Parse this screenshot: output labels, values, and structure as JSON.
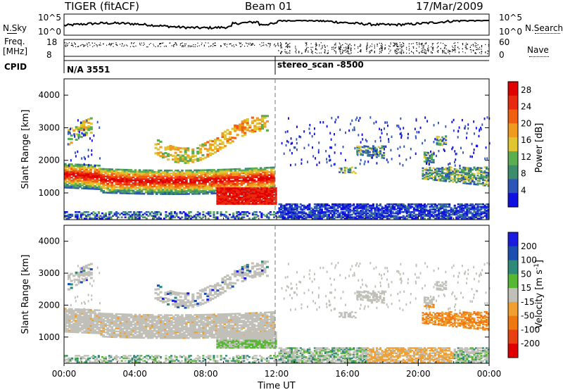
{
  "header": {
    "radar": "TIGER (fitACF)",
    "beam": "Beam 01",
    "date": "17/Mar/2009"
  },
  "top_strip": {
    "left_label": "N.Sky",
    "right_label": "N.Search",
    "y_ticks_left": [
      "10^5",
      "10^0"
    ],
    "y_ticks_right": [
      "10^5",
      "10^0"
    ]
  },
  "freq_strip": {
    "left_label_1": "Freq.",
    "left_label_2": "[MHz]",
    "right_label": "Nave",
    "y_ticks_left": [
      "18",
      "8"
    ],
    "y_ticks_right": [
      "60",
      "0"
    ]
  },
  "cpid": {
    "label": "CPID",
    "segments": [
      {
        "text": "N/A 3551",
        "start_hour": 0
      },
      {
        "text": "stereo_scan -8500",
        "start_hour": 12
      }
    ]
  },
  "colors": {
    "power": [
      "#1010e0",
      "#2e55b8",
      "#3c8c6e",
      "#5aae50",
      "#e0c430",
      "#f09a20",
      "#f06010",
      "#e82a10",
      "#e00000"
    ],
    "velocity": [
      "#1c1ce0",
      "#1d4fb0",
      "#2e8b7a",
      "#56b832",
      "#c0c0b8",
      "#f0a030",
      "#f07810",
      "#e84010",
      "#e00000"
    ],
    "ground_gray": "#c0c0b8"
  },
  "chart_data": [
    {
      "type": "heatmap",
      "name": "power",
      "xlabel": "",
      "ylabel": "Slant Range [km]",
      "x_ticks": [
        "00:00",
        "04:00",
        "08:00",
        "12:00",
        "16:00",
        "20:00",
        "00:00"
      ],
      "y_ticks": [
        1000,
        2000,
        3000,
        4000
      ],
      "xlim_hours": [
        0,
        24
      ],
      "ylim_km": [
        180,
        4500
      ],
      "colorbar": {
        "label": "Power [dB]",
        "ticks": [
          "4",
          "8",
          "12",
          "16",
          "20",
          "24",
          "28"
        ],
        "range": [
          0,
          30
        ]
      }
    },
    {
      "type": "heatmap",
      "name": "velocity",
      "xlabel": "Time UT",
      "ylabel": "Slant Range [km]",
      "x_ticks": [
        "00:00",
        "04:00",
        "08:00",
        "12:00",
        "16:00",
        "20:00",
        "00:00"
      ],
      "y_ticks": [
        1000,
        2000,
        3000,
        4000
      ],
      "xlim_hours": [
        0,
        24
      ],
      "ylim_km": [
        180,
        4500
      ],
      "colorbar": {
        "label": "Velocity [m s",
        "label_exponent": "-1",
        "label_close": "]",
        "ticks": [
          "200",
          "100",
          "50",
          "15",
          "-15",
          "-50",
          "-100",
          "-200"
        ]
      }
    }
  ]
}
